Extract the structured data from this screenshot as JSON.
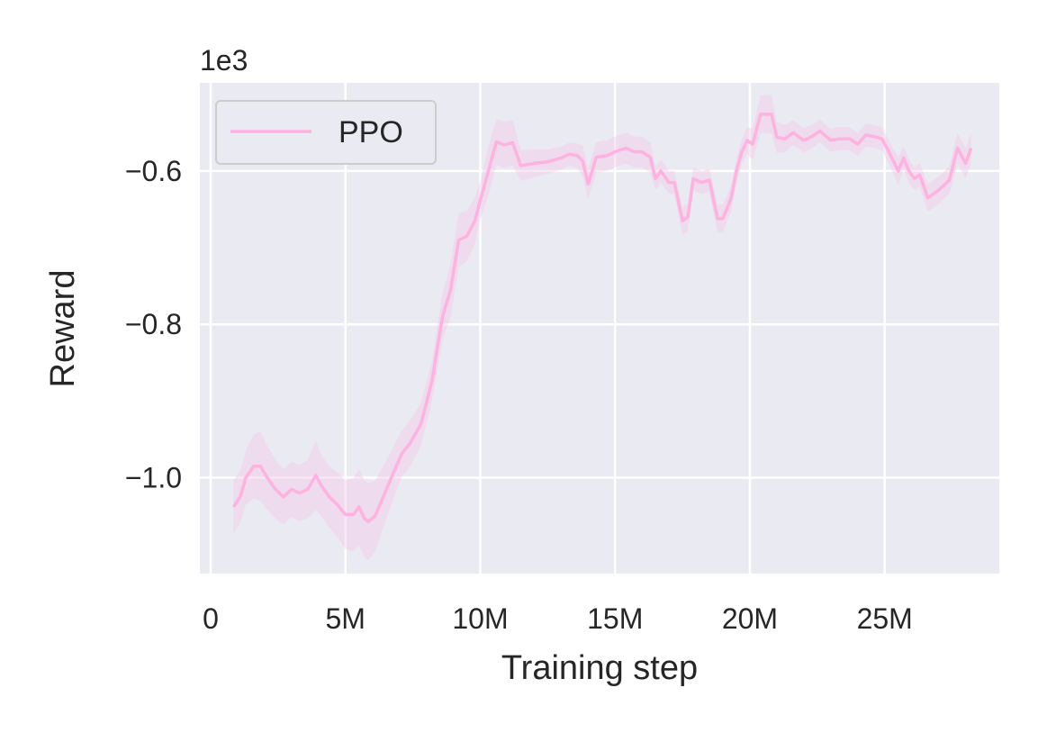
{
  "chart_data": {
    "type": "line",
    "title": "",
    "xlabel": "Training step",
    "ylabel": "Reward",
    "offset_text": "1e3",
    "xlim": [
      -0.4,
      29.25
    ],
    "ylim": [
      -1.125,
      -0.485
    ],
    "x_unit": "M steps",
    "x_ticks": [
      {
        "value": 0,
        "label": "0"
      },
      {
        "value": 5,
        "label": "5M"
      },
      {
        "value": 10,
        "label": "10M"
      },
      {
        "value": 15,
        "label": "15M"
      },
      {
        "value": 20,
        "label": "20M"
      },
      {
        "value": 25,
        "label": "25M"
      }
    ],
    "y_ticks": [
      {
        "value": -1.0,
        "label": "−1.0"
      },
      {
        "value": -0.8,
        "label": "−0.8"
      },
      {
        "value": -0.6,
        "label": "−0.6"
      }
    ],
    "grid": true,
    "legend_position": "top-left",
    "colors": {
      "background": "#eaeaf2",
      "grid": "#ffffff",
      "line": "#ffb1e0",
      "band": "#f5c9e6"
    },
    "series": [
      {
        "name": "PPO",
        "x": [
          0.85,
          1.1,
          1.3,
          1.6,
          1.85,
          2.1,
          2.4,
          2.7,
          3.0,
          3.3,
          3.6,
          3.9,
          4.1,
          4.4,
          4.7,
          5.0,
          5.3,
          5.5,
          5.7,
          5.85,
          6.1,
          6.4,
          6.7,
          7.1,
          7.4,
          7.8,
          8.2,
          8.6,
          8.9,
          9.2,
          9.5,
          9.8,
          10.0,
          10.3,
          10.6,
          10.9,
          11.2,
          11.5,
          12.0,
          12.5,
          13.0,
          13.3,
          13.6,
          13.8,
          14.0,
          14.3,
          14.7,
          15.0,
          15.4,
          15.7,
          16.0,
          16.3,
          16.5,
          16.7,
          17.0,
          17.2,
          17.5,
          17.7,
          17.9,
          18.2,
          18.5,
          18.8,
          19.0,
          19.3,
          19.5,
          19.7,
          19.9,
          20.1,
          20.4,
          20.8,
          21.0,
          21.3,
          21.6,
          22.0,
          22.3,
          22.6,
          23.0,
          23.3,
          23.7,
          24.0,
          24.3,
          24.6,
          24.9,
          25.2,
          25.5,
          25.7,
          25.9,
          26.1,
          26.3,
          26.6,
          26.8,
          27.0,
          27.4,
          27.7,
          28.0,
          28.2
        ],
        "y": [
          -1.038,
          -1.025,
          -1.0,
          -0.985,
          -0.985,
          -1.0,
          -1.015,
          -1.025,
          -1.015,
          -1.02,
          -1.015,
          -0.997,
          -1.01,
          -1.025,
          -1.035,
          -1.048,
          -1.048,
          -1.038,
          -1.053,
          -1.057,
          -1.05,
          -1.025,
          -1.0,
          -0.968,
          -0.955,
          -0.93,
          -0.875,
          -0.79,
          -0.755,
          -0.69,
          -0.685,
          -0.665,
          -0.638,
          -0.6,
          -0.562,
          -0.566,
          -0.563,
          -0.593,
          -0.59,
          -0.588,
          -0.583,
          -0.578,
          -0.58,
          -0.587,
          -0.617,
          -0.582,
          -0.58,
          -0.575,
          -0.57,
          -0.575,
          -0.575,
          -0.582,
          -0.61,
          -0.6,
          -0.615,
          -0.615,
          -0.665,
          -0.66,
          -0.61,
          -0.615,
          -0.612,
          -0.662,
          -0.662,
          -0.636,
          -0.6,
          -0.575,
          -0.56,
          -0.565,
          -0.526,
          -0.526,
          -0.556,
          -0.558,
          -0.55,
          -0.56,
          -0.555,
          -0.548,
          -0.56,
          -0.558,
          -0.558,
          -0.565,
          -0.553,
          -0.555,
          -0.558,
          -0.578,
          -0.6,
          -0.583,
          -0.6,
          -0.61,
          -0.605,
          -0.635,
          -0.63,
          -0.625,
          -0.612,
          -0.57,
          -0.59,
          -0.57
        ],
        "band_halfwidth": [
          0.035,
          0.034,
          0.035,
          0.042,
          0.045,
          0.042,
          0.038,
          0.036,
          0.036,
          0.037,
          0.038,
          0.045,
          0.04,
          0.04,
          0.042,
          0.045,
          0.048,
          0.05,
          0.05,
          0.05,
          0.046,
          0.04,
          0.035,
          0.03,
          0.03,
          0.028,
          0.026,
          0.03,
          0.035,
          0.035,
          0.033,
          0.03,
          0.025,
          0.032,
          0.03,
          0.03,
          0.03,
          0.02,
          0.018,
          0.016,
          0.015,
          0.015,
          0.016,
          0.02,
          0.02,
          0.02,
          0.02,
          0.02,
          0.02,
          0.02,
          0.02,
          0.02,
          0.015,
          0.015,
          0.015,
          0.015,
          0.018,
          0.018,
          0.015,
          0.015,
          0.015,
          0.018,
          0.018,
          0.016,
          0.016,
          0.016,
          0.018,
          0.02,
          0.025,
          0.025,
          0.02,
          0.018,
          0.016,
          0.016,
          0.015,
          0.015,
          0.015,
          0.015,
          0.015,
          0.015,
          0.015,
          0.015,
          0.015,
          0.015,
          0.018,
          0.015,
          0.015,
          0.015,
          0.015,
          0.018,
          0.018,
          0.018,
          0.018,
          0.02,
          0.02,
          0.02
        ]
      }
    ]
  }
}
